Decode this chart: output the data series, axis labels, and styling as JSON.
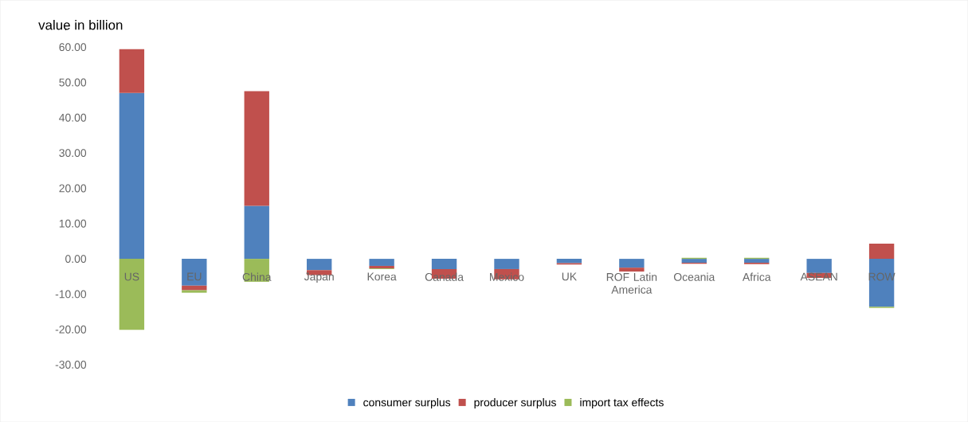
{
  "chart_data": {
    "type": "bar",
    "stacked": true,
    "ylabel": "value in billion",
    "categories": [
      "US",
      "EU",
      "China",
      "Japan",
      "Korea",
      "Canada",
      "Mexico",
      "UK",
      "ROF Latin America",
      "Oceania",
      "Africa",
      "ASEAN",
      "ROW"
    ],
    "series": [
      {
        "name": "consumer surplus",
        "color": "#4f81bd",
        "values": [
          47.0,
          -7.6,
          15.0,
          -3.2,
          -2.0,
          -2.9,
          -2.9,
          -1.2,
          -2.5,
          -1.1,
          -1.1,
          -4.0,
          -13.6
        ]
      },
      {
        "name": "producer surplus",
        "color": "#c0504d",
        "values": [
          12.4,
          -1.3,
          32.5,
          -1.4,
          -0.7,
          -2.7,
          -2.9,
          -0.4,
          -1.1,
          -0.3,
          -0.4,
          -1.4,
          4.3
        ]
      },
      {
        "name": "import tax effects",
        "color": "#9bbb59",
        "values": [
          -20.1,
          -0.7,
          -6.5,
          0,
          -0.2,
          0,
          0,
          0,
          0,
          0.3,
          0.3,
          0,
          -0.3
        ]
      }
    ],
    "ylim": [
      -30,
      60
    ],
    "yticks": [
      {
        "value": -30,
        "label": "-30.00"
      },
      {
        "value": -20,
        "label": "-20.00"
      },
      {
        "value": -10,
        "label": "-10.00"
      },
      {
        "value": 0,
        "label": "0.00"
      },
      {
        "value": 10,
        "label": "10.00"
      },
      {
        "value": 20,
        "label": "20.00"
      },
      {
        "value": 30,
        "label": "30.00"
      },
      {
        "value": 40,
        "label": "40.00"
      },
      {
        "value": 50,
        "label": "50.00"
      },
      {
        "value": 60,
        "label": "60.00"
      }
    ],
    "legend": "bottom"
  }
}
